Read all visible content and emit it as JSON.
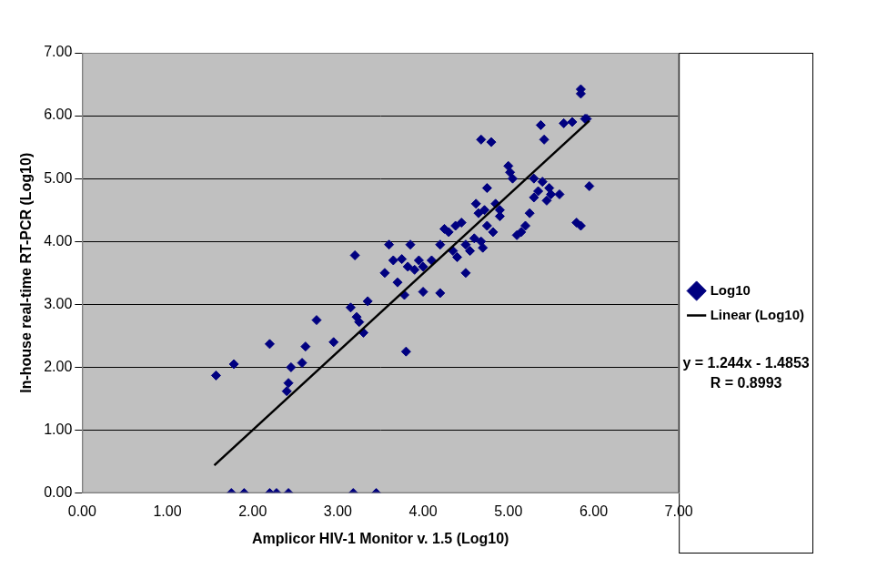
{
  "chart_data": {
    "type": "scatter",
    "x_label": "Amplicor HIV-1 Monitor v. 1.5 (Log10)",
    "y_label": "In-house real-time RT-PCR (Log10)",
    "xlim": [
      0,
      7
    ],
    "ylim": [
      0,
      7
    ],
    "xticks": [
      {
        "value": 0,
        "label": "0.00"
      },
      {
        "value": 1,
        "label": "1.00"
      },
      {
        "value": 2,
        "label": "2.00"
      },
      {
        "value": 3,
        "label": "3.00"
      },
      {
        "value": 4,
        "label": "4.00"
      },
      {
        "value": 5,
        "label": "5.00"
      },
      {
        "value": 6,
        "label": "6.00"
      },
      {
        "value": 7,
        "label": "7.00"
      }
    ],
    "yticks": [
      {
        "value": 0,
        "label": "0.00"
      },
      {
        "value": 1,
        "label": "1.00"
      },
      {
        "value": 2,
        "label": "2.00"
      },
      {
        "value": 3,
        "label": "3.00"
      },
      {
        "value": 4,
        "label": "4.00"
      },
      {
        "value": 5,
        "label": "5.00"
      },
      {
        "value": 6,
        "label": "6.00"
      },
      {
        "value": 7,
        "label": "7.00"
      }
    ],
    "grid": "y",
    "legend": "right",
    "annotations": [
      "y = 1.244x - 1.4853",
      "R = 0.8993"
    ],
    "series": [
      {
        "name": "Log10",
        "type": "scatter",
        "marker": "diamond",
        "color": "#000080",
        "x": [
          1.57,
          1.78,
          1.75,
          1.9,
          2.2,
          2.28,
          2.42,
          3.18,
          3.45,
          2.2,
          2.4,
          2.42,
          2.45,
          2.58,
          2.62,
          2.75,
          2.95,
          3.15,
          3.2,
          3.22,
          3.3,
          3.35,
          3.25,
          3.55,
          3.6,
          3.65,
          3.75,
          3.7,
          3.78,
          3.8,
          3.82,
          3.85,
          3.9,
          3.95,
          4.0,
          4.0,
          4.1,
          4.2,
          4.2,
          4.25,
          4.3,
          4.35,
          4.38,
          4.4,
          4.45,
          4.5,
          4.5,
          4.55,
          4.6,
          4.62,
          4.65,
          4.68,
          4.68,
          4.7,
          4.72,
          4.75,
          4.75,
          4.8,
          4.82,
          4.85,
          4.9,
          4.9,
          5.0,
          5.02,
          5.05,
          5.1,
          5.15,
          5.2,
          5.25,
          5.3,
          5.3,
          5.35,
          5.38,
          5.4,
          5.42,
          5.45,
          5.48,
          5.5,
          5.6,
          5.65,
          5.75,
          5.8,
          5.85,
          5.85,
          5.85,
          5.9,
          5.95,
          5.92
        ],
        "values": [
          1.87,
          2.05,
          0,
          0,
          0,
          0,
          0,
          0,
          0,
          2.37,
          1.62,
          1.75,
          2.0,
          2.07,
          2.33,
          2.75,
          2.4,
          2.95,
          3.78,
          2.8,
          2.55,
          3.05,
          2.72,
          3.5,
          3.95,
          3.7,
          3.72,
          3.35,
          3.15,
          2.25,
          3.6,
          3.95,
          3.55,
          3.7,
          3.6,
          3.2,
          3.7,
          3.95,
          3.18,
          4.2,
          4.15,
          3.85,
          4.25,
          3.75,
          4.3,
          3.95,
          3.5,
          3.85,
          4.05,
          4.6,
          4.45,
          4.0,
          5.62,
          3.9,
          4.5,
          4.85,
          4.25,
          5.58,
          4.15,
          4.6,
          4.4,
          4.5,
          5.2,
          5.1,
          5.0,
          4.1,
          4.15,
          4.25,
          4.45,
          4.7,
          5.0,
          4.8,
          5.85,
          4.95,
          5.62,
          4.65,
          4.85,
          4.75,
          4.75,
          5.88,
          5.9,
          4.3,
          4.25,
          6.35,
          6.42,
          5.95,
          4.88,
          5.95
        ]
      },
      {
        "name": "Linear (Log10)",
        "type": "line",
        "line_style": "solid",
        "color": "#000000",
        "x": [
          1.55,
          5.95
        ],
        "values": [
          0.44,
          5.92
        ]
      }
    ]
  }
}
